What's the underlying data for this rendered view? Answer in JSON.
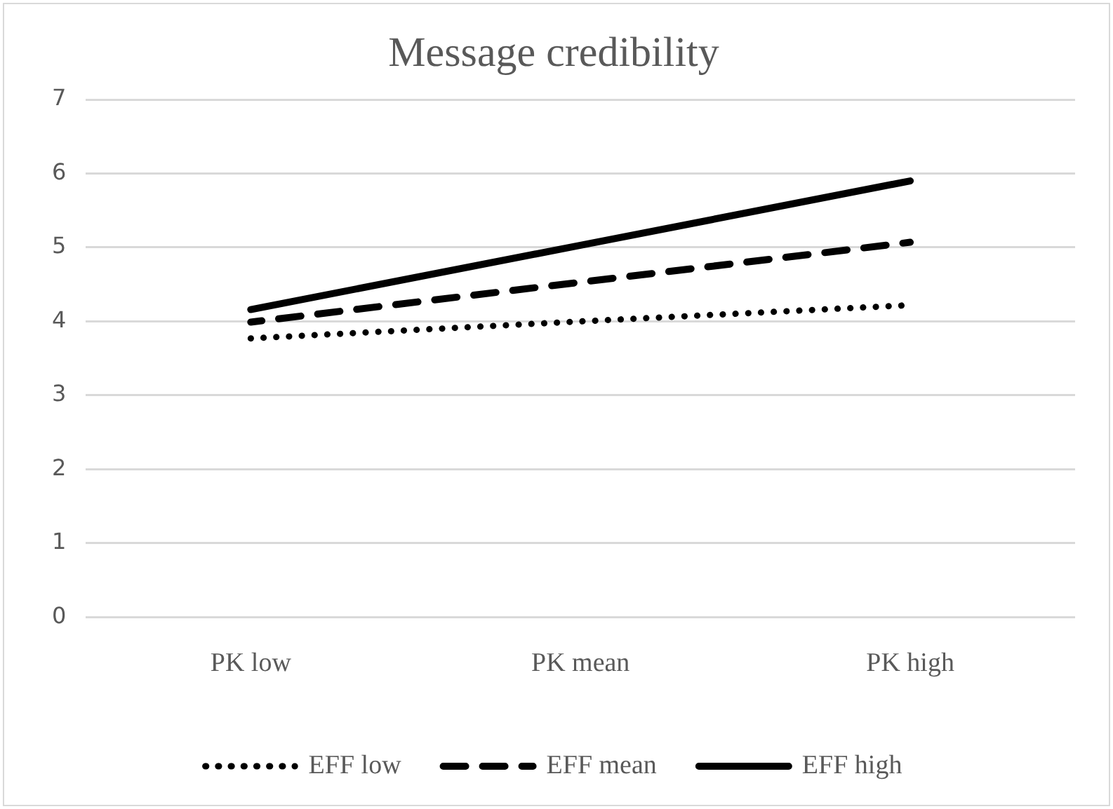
{
  "chart_data": {
    "type": "line",
    "title": "Message credibility",
    "categories": [
      "PK low",
      "PK mean",
      "PK high"
    ],
    "series": [
      {
        "name": "EFF low",
        "color": "#000000",
        "line_style": "dotted",
        "values": [
          3.77,
          4.0,
          4.22
        ]
      },
      {
        "name": "EFF mean",
        "color": "#000000",
        "line_style": "dashed",
        "values": [
          3.99,
          4.53,
          5.07
        ]
      },
      {
        "name": "EFF high",
        "color": "#000000",
        "line_style": "solid",
        "values": [
          4.16,
          5.03,
          5.9
        ]
      }
    ],
    "ylim": [
      0,
      7
    ],
    "yticks": [
      0,
      1,
      2,
      3,
      4,
      5,
      6,
      7
    ],
    "grid": "y",
    "legend": "bottom",
    "marker": "none"
  }
}
